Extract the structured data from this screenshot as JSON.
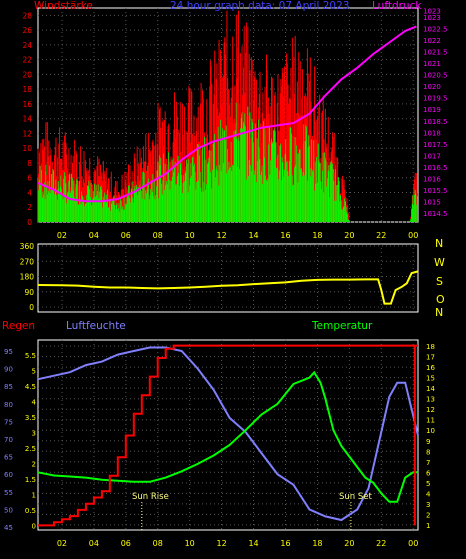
{
  "colors": {
    "background": "#000000",
    "frame": "#ffffff",
    "grid": "#555555",
    "wind_title": "#ff0000",
    "date_title": "#4040ff",
    "pressure": "#ff00ff",
    "wind_avg": "#00ff00",
    "wind_gust": "#ff0000",
    "direction": "#ffff00",
    "rain": "#ff0000",
    "humidity": "#8080ff",
    "temperature": "#00ff00",
    "sun": "#ffff80",
    "tick_yellow": "#ffff00"
  },
  "header": {
    "wind_label": "Windstärke",
    "date_label": "24 hour graph data: 07 April 2023",
    "pressure_label": "Luftdruck"
  },
  "middle": {
    "compass": [
      "N",
      "W",
      "S",
      "O",
      "N"
    ]
  },
  "bottom_header": {
    "rain_label": "Regen",
    "humidity_label": "Luftfeuchte",
    "temperature_label": "Temperatur"
  },
  "sun": {
    "rise_label": "Sun Rise",
    "set_label": "Sun Set"
  },
  "chart_data": [
    {
      "type": "bar",
      "name": "wind",
      "x_ticks": [
        "02",
        "04",
        "06",
        "08",
        "10",
        "12",
        "14",
        "16",
        "18",
        "20",
        "22",
        "00"
      ],
      "wind_ticks": [
        "0",
        "2",
        "4",
        "6",
        "8",
        "10",
        "12",
        "14",
        "16",
        "18",
        "20",
        "22",
        "24",
        "26",
        "28"
      ],
      "pressure_ticks": [
        "1014.5",
        "1015",
        "1015.5",
        "1016",
        "1016.5",
        "1017",
        "1017.5",
        "1018",
        "1018.5",
        "1019",
        "1019.5",
        "1020",
        "1020.5",
        "1021",
        "1021.5",
        "1022",
        "1022.5",
        "1023",
        "1023"
      ],
      "wind_ylim": [
        0,
        29
      ],
      "pressure_ylim": [
        1014.1,
        1023.4
      ],
      "x_range": [
        0.5,
        24.3
      ],
      "gust_profile": [
        [
          0.5,
          10
        ],
        [
          2,
          9
        ],
        [
          4,
          7
        ],
        [
          5.5,
          4
        ],
        [
          7,
          8
        ],
        [
          8.5,
          13
        ],
        [
          10,
          13
        ],
        [
          11.5,
          16
        ],
        [
          12.8,
          22
        ],
        [
          14,
          17
        ],
        [
          15.5,
          15
        ],
        [
          17,
          19
        ],
        [
          18,
          14
        ],
        [
          19,
          9
        ],
        [
          19.8,
          3
        ],
        [
          20,
          0
        ],
        [
          23.8,
          0
        ],
        [
          24,
          4
        ],
        [
          24.3,
          6
        ]
      ],
      "avg_profile": [
        [
          0.5,
          6
        ],
        [
          2,
          5
        ],
        [
          4,
          4
        ],
        [
          5.5,
          2.5
        ],
        [
          7,
          5
        ],
        [
          8.5,
          7
        ],
        [
          10,
          7
        ],
        [
          11.5,
          9
        ],
        [
          12.8,
          12
        ],
        [
          14,
          11
        ],
        [
          15.5,
          9
        ],
        [
          17,
          10
        ],
        [
          18,
          8
        ],
        [
          19,
          6
        ],
        [
          19.8,
          2
        ],
        [
          20,
          0
        ],
        [
          23.8,
          0
        ],
        [
          24,
          3
        ],
        [
          24.3,
          3.5
        ]
      ],
      "pressure_series": [
        [
          0.5,
          1015.8
        ],
        [
          1.5,
          1015.5
        ],
        [
          2.5,
          1015.1
        ],
        [
          3.5,
          1015.0
        ],
        [
          4.5,
          1015.0
        ],
        [
          5.5,
          1015.1
        ],
        [
          6.5,
          1015.4
        ],
        [
          7.5,
          1015.8
        ],
        [
          8.5,
          1016.2
        ],
        [
          9.5,
          1016.8
        ],
        [
          10.5,
          1017.3
        ],
        [
          11.5,
          1017.6
        ],
        [
          12.5,
          1017.8
        ],
        [
          13.5,
          1018.0
        ],
        [
          14.5,
          1018.2
        ],
        [
          15.5,
          1018.3
        ],
        [
          16.5,
          1018.4
        ],
        [
          17.5,
          1018.8
        ],
        [
          18.5,
          1019.6
        ],
        [
          19.5,
          1020.3
        ],
        [
          20.5,
          1020.8
        ],
        [
          21.5,
          1021.4
        ],
        [
          22.5,
          1021.9
        ],
        [
          23.5,
          1022.4
        ],
        [
          24.2,
          1022.6
        ]
      ]
    },
    {
      "type": "line",
      "name": "direction",
      "y_ticks": [
        "360",
        "270",
        "180",
        "90",
        "0"
      ],
      "ylim": [
        0,
        360
      ],
      "series": [
        [
          0.5,
          130
        ],
        [
          2,
          128
        ],
        [
          3,
          126
        ],
        [
          4,
          120
        ],
        [
          5,
          115
        ],
        [
          6,
          115
        ],
        [
          7,
          112
        ],
        [
          8,
          110
        ],
        [
          9,
          112
        ],
        [
          10,
          115
        ],
        [
          11,
          120
        ],
        [
          12,
          125
        ],
        [
          13,
          128
        ],
        [
          14,
          135
        ],
        [
          15,
          140
        ],
        [
          16,
          145
        ],
        [
          17,
          155
        ],
        [
          18,
          160
        ],
        [
          19,
          162
        ],
        [
          20,
          162
        ],
        [
          21,
          163
        ],
        [
          21.8,
          163
        ],
        [
          22,
          100
        ],
        [
          22.2,
          20
        ],
        [
          22.6,
          20
        ],
        [
          22.9,
          100
        ],
        [
          23.3,
          120
        ],
        [
          23.6,
          140
        ],
        [
          23.9,
          200
        ],
        [
          24.3,
          210
        ]
      ]
    },
    {
      "type": "line",
      "name": "rain-humidity-temperature",
      "rain_ticks": [
        "0",
        "0.5",
        "1",
        "1.5",
        "2",
        "2.5",
        "3",
        "3.5",
        "4",
        "4.5",
        "5",
        "5.5"
      ],
      "humidity_ticks": [
        "45",
        "50",
        "55",
        "60",
        "65",
        "70",
        "75",
        "80",
        "85",
        "90",
        "95"
      ],
      "temperature_ticks": [
        "1",
        "2",
        "3",
        "4",
        "5",
        "6",
        "7",
        "8",
        "9",
        "10",
        "11",
        "12",
        "13",
        "14",
        "15",
        "16",
        "17",
        "18"
      ],
      "rain_ylim": [
        -0.05,
        5.85
      ],
      "humidity_ylim": [
        45,
        97
      ],
      "temperature_ylim": [
        0.8,
        18.2
      ],
      "rain_series": [
        [
          0.5,
          0
        ],
        [
          1,
          0
        ],
        [
          1.5,
          0.1
        ],
        [
          2,
          0.2
        ],
        [
          2.5,
          0.3
        ],
        [
          3,
          0.5
        ],
        [
          3.5,
          0.7
        ],
        [
          4,
          0.9
        ],
        [
          4.5,
          1.1
        ],
        [
          5,
          1.6
        ],
        [
          5.5,
          2.2
        ],
        [
          6,
          2.9
        ],
        [
          6.5,
          3.6
        ],
        [
          7,
          4.2
        ],
        [
          7.5,
          4.8
        ],
        [
          8,
          5.4
        ],
        [
          8.5,
          5.7
        ],
        [
          9,
          5.8
        ],
        [
          10,
          5.8
        ],
        [
          12,
          5.8
        ],
        [
          16,
          5.8
        ],
        [
          20,
          5.8
        ],
        [
          24,
          5.8
        ],
        [
          24.3,
          5.8
        ]
      ],
      "rain_drop": [
        [
          24.1,
          5.8
        ],
        [
          24.1,
          0
        ]
      ],
      "humidity_series": [
        [
          0.5,
          87
        ],
        [
          1.5,
          88
        ],
        [
          2.5,
          89
        ],
        [
          3.5,
          91
        ],
        [
          4.5,
          92
        ],
        [
          5.5,
          94
        ],
        [
          6.5,
          95
        ],
        [
          7.5,
          96
        ],
        [
          8.5,
          96
        ],
        [
          9.5,
          95
        ],
        [
          10.5,
          90
        ],
        [
          11.5,
          84
        ],
        [
          12.5,
          76
        ],
        [
          13.5,
          72
        ],
        [
          14.5,
          66
        ],
        [
          15.5,
          60
        ],
        [
          16.5,
          57
        ],
        [
          17.5,
          50
        ],
        [
          18.5,
          48
        ],
        [
          19.5,
          47
        ],
        [
          20.5,
          50
        ],
        [
          21.2,
          56
        ],
        [
          22,
          72
        ],
        [
          22.5,
          82
        ],
        [
          23,
          86
        ],
        [
          23.5,
          86
        ],
        [
          24.3,
          71
        ]
      ],
      "temperature_series": [
        [
          0.5,
          6
        ],
        [
          1.5,
          5.7
        ],
        [
          2.5,
          5.6
        ],
        [
          3.5,
          5.5
        ],
        [
          4.5,
          5.3
        ],
        [
          5.5,
          5.2
        ],
        [
          6.5,
          5.1
        ],
        [
          7.5,
          5.1
        ],
        [
          8.5,
          5.5
        ],
        [
          9.5,
          6.1
        ],
        [
          10.5,
          6.8
        ],
        [
          11.5,
          7.6
        ],
        [
          12.5,
          8.6
        ],
        [
          13.5,
          10
        ],
        [
          14.5,
          11.5
        ],
        [
          15.5,
          12.5
        ],
        [
          16.5,
          14.4
        ],
        [
          17.5,
          15.0
        ],
        [
          17.8,
          15.5
        ],
        [
          18.2,
          14.5
        ],
        [
          18.5,
          13
        ],
        [
          19,
          10
        ],
        [
          19.5,
          8.5
        ],
        [
          20,
          7.5
        ],
        [
          20.5,
          6.5
        ],
        [
          21,
          5.5
        ],
        [
          21.5,
          5.0
        ],
        [
          22,
          4.0
        ],
        [
          22.5,
          3.2
        ],
        [
          23,
          3.2
        ],
        [
          23.5,
          5.5
        ],
        [
          24,
          6.0
        ],
        [
          24.3,
          6.0
        ]
      ],
      "sun_rise_x": 7.0,
      "sun_set_x": 20.1
    }
  ]
}
